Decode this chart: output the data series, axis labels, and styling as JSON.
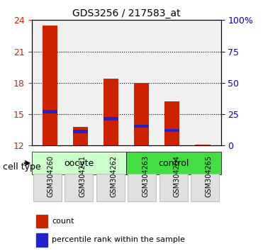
{
  "title": "GDS3256 / 217583_at",
  "samples": [
    "GSM304260",
    "GSM304261",
    "GSM304262",
    "GSM304263",
    "GSM304264",
    "GSM304265"
  ],
  "bar_base": 12,
  "bar_tops": [
    23.5,
    13.8,
    18.4,
    18.0,
    16.2,
    12.1
  ],
  "percentile_positions": [
    15.1,
    13.2,
    14.4,
    13.7,
    13.3,
    12.0
  ],
  "percentile_heights": [
    0.3,
    0.3,
    0.3,
    0.3,
    0.3,
    0.0
  ],
  "bar_color": "#cc2200",
  "percentile_color": "#2222cc",
  "ylim_left": [
    12,
    24
  ],
  "ylim_right": [
    0,
    100
  ],
  "yticks_left": [
    12,
    15,
    18,
    21,
    24
  ],
  "yticks_right": [
    0,
    25,
    50,
    75,
    100
  ],
  "ytick_labels_right": [
    "0",
    "25",
    "50",
    "75",
    "100%"
  ],
  "cell_types": [
    {
      "label": "oocyte",
      "samples": [
        0,
        1,
        2
      ],
      "color": "#ccffcc"
    },
    {
      "label": "control",
      "samples": [
        3,
        4,
        5
      ],
      "color": "#44dd44"
    }
  ],
  "legend_count_label": "count",
  "legend_percentile_label": "percentile rank within the sample",
  "cell_type_label": "cell type",
  "background_color": "#ffffff",
  "plot_bg": "#ffffff",
  "tick_color_left": "#cc2200",
  "tick_color_right": "#0000cc",
  "grid_style": "dotted",
  "bar_width": 0.5
}
